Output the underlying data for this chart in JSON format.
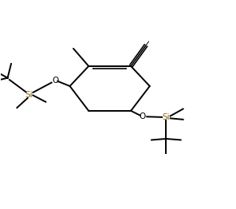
{
  "bg_color": "#ffffff",
  "line_color": "#000000",
  "si_color": "#8B6914",
  "lw": 1.4,
  "figsize": [
    2.96,
    2.62
  ],
  "dpi": 100,
  "xlim": [
    0,
    10
  ],
  "ylim": [
    0,
    8.84
  ]
}
